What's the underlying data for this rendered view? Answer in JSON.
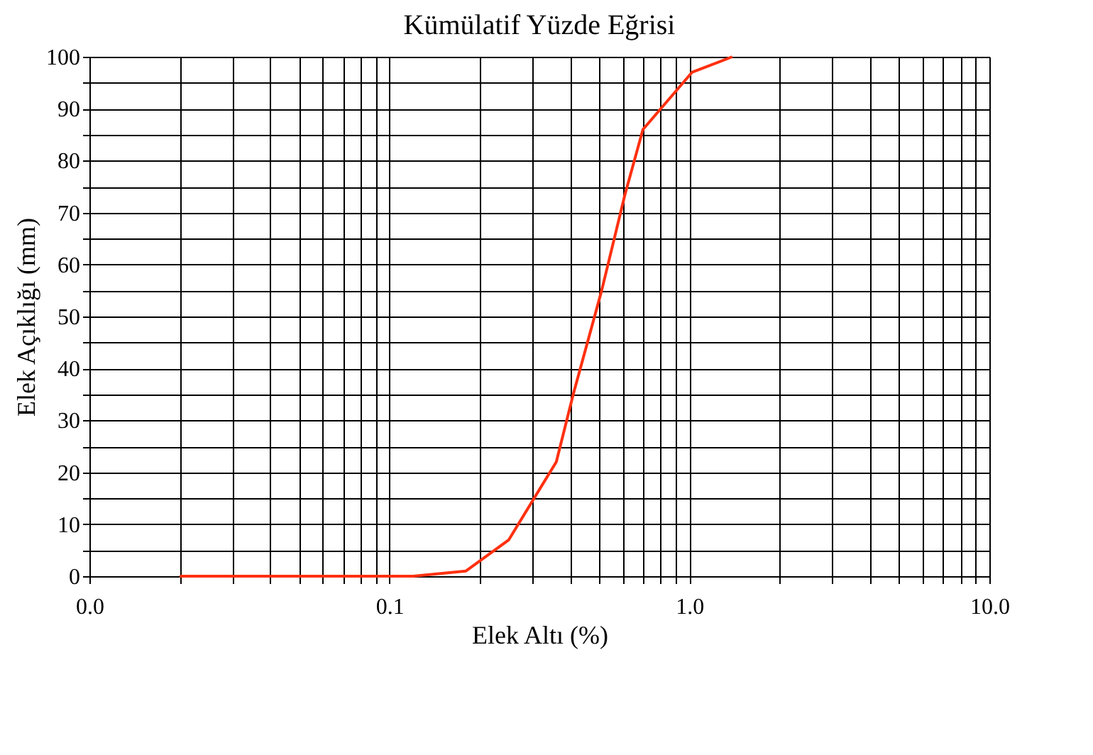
{
  "chart_data": {
    "type": "line",
    "title": "Kümülatif Yüzde Eğrisi",
    "xlabel": "Elek Altı (%)",
    "ylabel": "Elek Açıklığı (mm)",
    "x": [
      0.02,
      0.12,
      0.18,
      0.25,
      0.36,
      0.41,
      0.51,
      0.61,
      0.7,
      1.02,
      1.39
    ],
    "series": [
      {
        "color": "#ff3010",
        "values": [
          0,
          0,
          1,
          7,
          22,
          35,
          55,
          73.5,
          86,
          97,
          100
        ]
      }
    ],
    "log": "x",
    "xlim": [
      0.01,
      10
    ],
    "ylim": [
      0,
      100
    ],
    "xticks": [
      {
        "value": 0.01,
        "label": "0.0"
      },
      {
        "value": 0.02,
        "label": null
      },
      {
        "value": 0.03,
        "label": null
      },
      {
        "value": 0.04,
        "label": null
      },
      {
        "value": 0.05,
        "label": null
      },
      {
        "value": 0.06,
        "label": null
      },
      {
        "value": 0.07,
        "label": null
      },
      {
        "value": 0.08,
        "label": null
      },
      {
        "value": 0.09,
        "label": null
      },
      0.1,
      {
        "value": 0.2,
        "label": null
      },
      {
        "value": 0.3,
        "label": null
      },
      {
        "value": 0.4,
        "label": null
      },
      {
        "value": 0.5,
        "label": null
      },
      {
        "value": 0.6,
        "label": null
      },
      {
        "value": 0.7,
        "label": null
      },
      {
        "value": 0.8,
        "label": null
      },
      {
        "value": 0.9,
        "label": null
      },
      {
        "value": 1,
        "label": "1.0"
      },
      {
        "value": 2,
        "label": null
      },
      {
        "value": 3,
        "label": null
      },
      {
        "value": 4,
        "label": null
      },
      {
        "value": 5,
        "label": null
      },
      {
        "value": 6,
        "label": null
      },
      {
        "value": 7,
        "label": null
      },
      {
        "value": 8,
        "label": null
      },
      {
        "value": 9,
        "label": null
      },
      {
        "value": 10,
        "label": "10.0"
      }
    ],
    "yticks": [
      0,
      {
        "value": 5,
        "label": null
      },
      10,
      {
        "value": 15,
        "label": null
      },
      20,
      {
        "value": 25,
        "label": null
      },
      30,
      {
        "value": 35,
        "label": null
      },
      40,
      {
        "value": 45,
        "label": null
      },
      50,
      {
        "value": 55,
        "label": null
      },
      60,
      {
        "value": 65,
        "label": null
      },
      70,
      {
        "value": 75,
        "label": null
      },
      80,
      {
        "value": 85,
        "label": null
      },
      90,
      {
        "value": 95,
        "label": null
      },
      100
    ],
    "grid": true,
    "marker": "none",
    "line_style": "solid"
  }
}
